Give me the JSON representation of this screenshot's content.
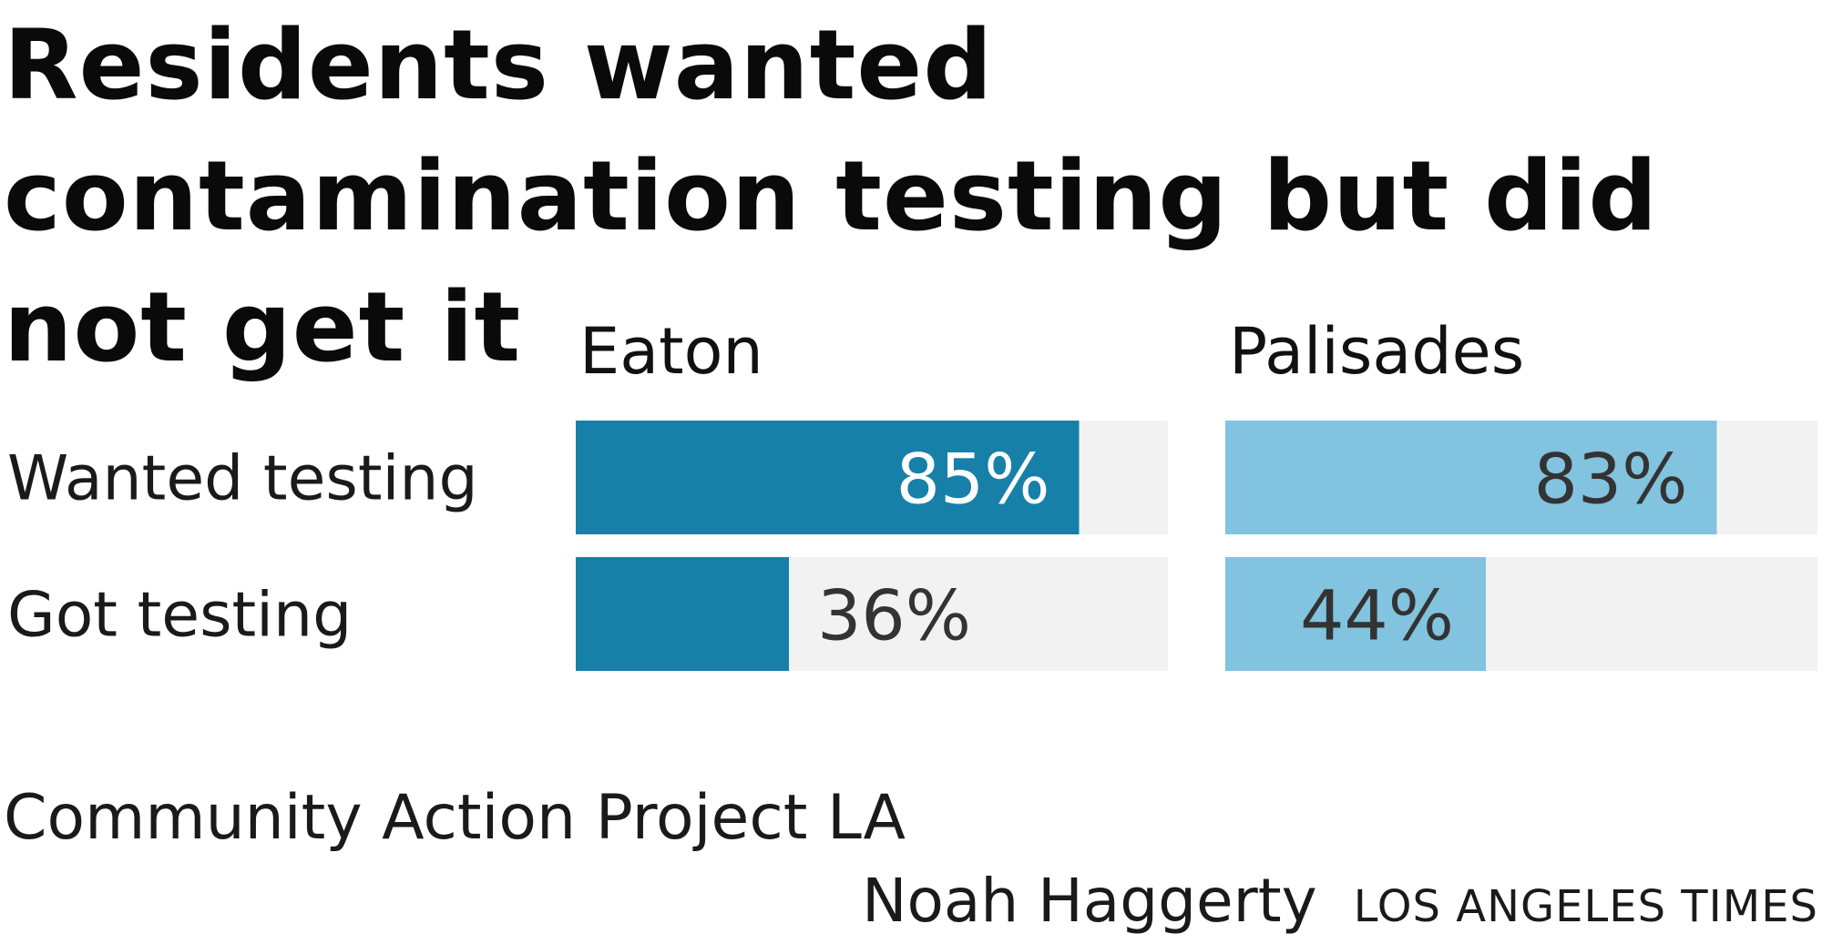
{
  "title": "Residents wanted contamination testing but did not get it",
  "source": "Community Action Project LA",
  "credit": "Noah Haggerty",
  "organization": "LOS ANGELES TIMES",
  "colors": {
    "eaton": "#1780a8",
    "palisades": "#82c3df",
    "track": "#f2f2f2",
    "label_on_dark": "#ffffff",
    "label_dark": "#333333"
  },
  "chart_data": {
    "type": "bar",
    "orientation": "horizontal",
    "layout": "small-multiples",
    "categories": [
      "Wanted testing",
      "Got testing"
    ],
    "series": [
      {
        "name": "Eaton",
        "values": [
          85,
          36
        ],
        "labels": [
          "85%",
          "36%"
        ],
        "color": "#1780a8"
      },
      {
        "name": "Palisades",
        "values": [
          83,
          44
        ],
        "labels": [
          "83%",
          "44%"
        ],
        "color": "#82c3df"
      }
    ],
    "xlim": [
      0,
      100
    ],
    "unit": "%",
    "grid": false,
    "legend": "none"
  }
}
